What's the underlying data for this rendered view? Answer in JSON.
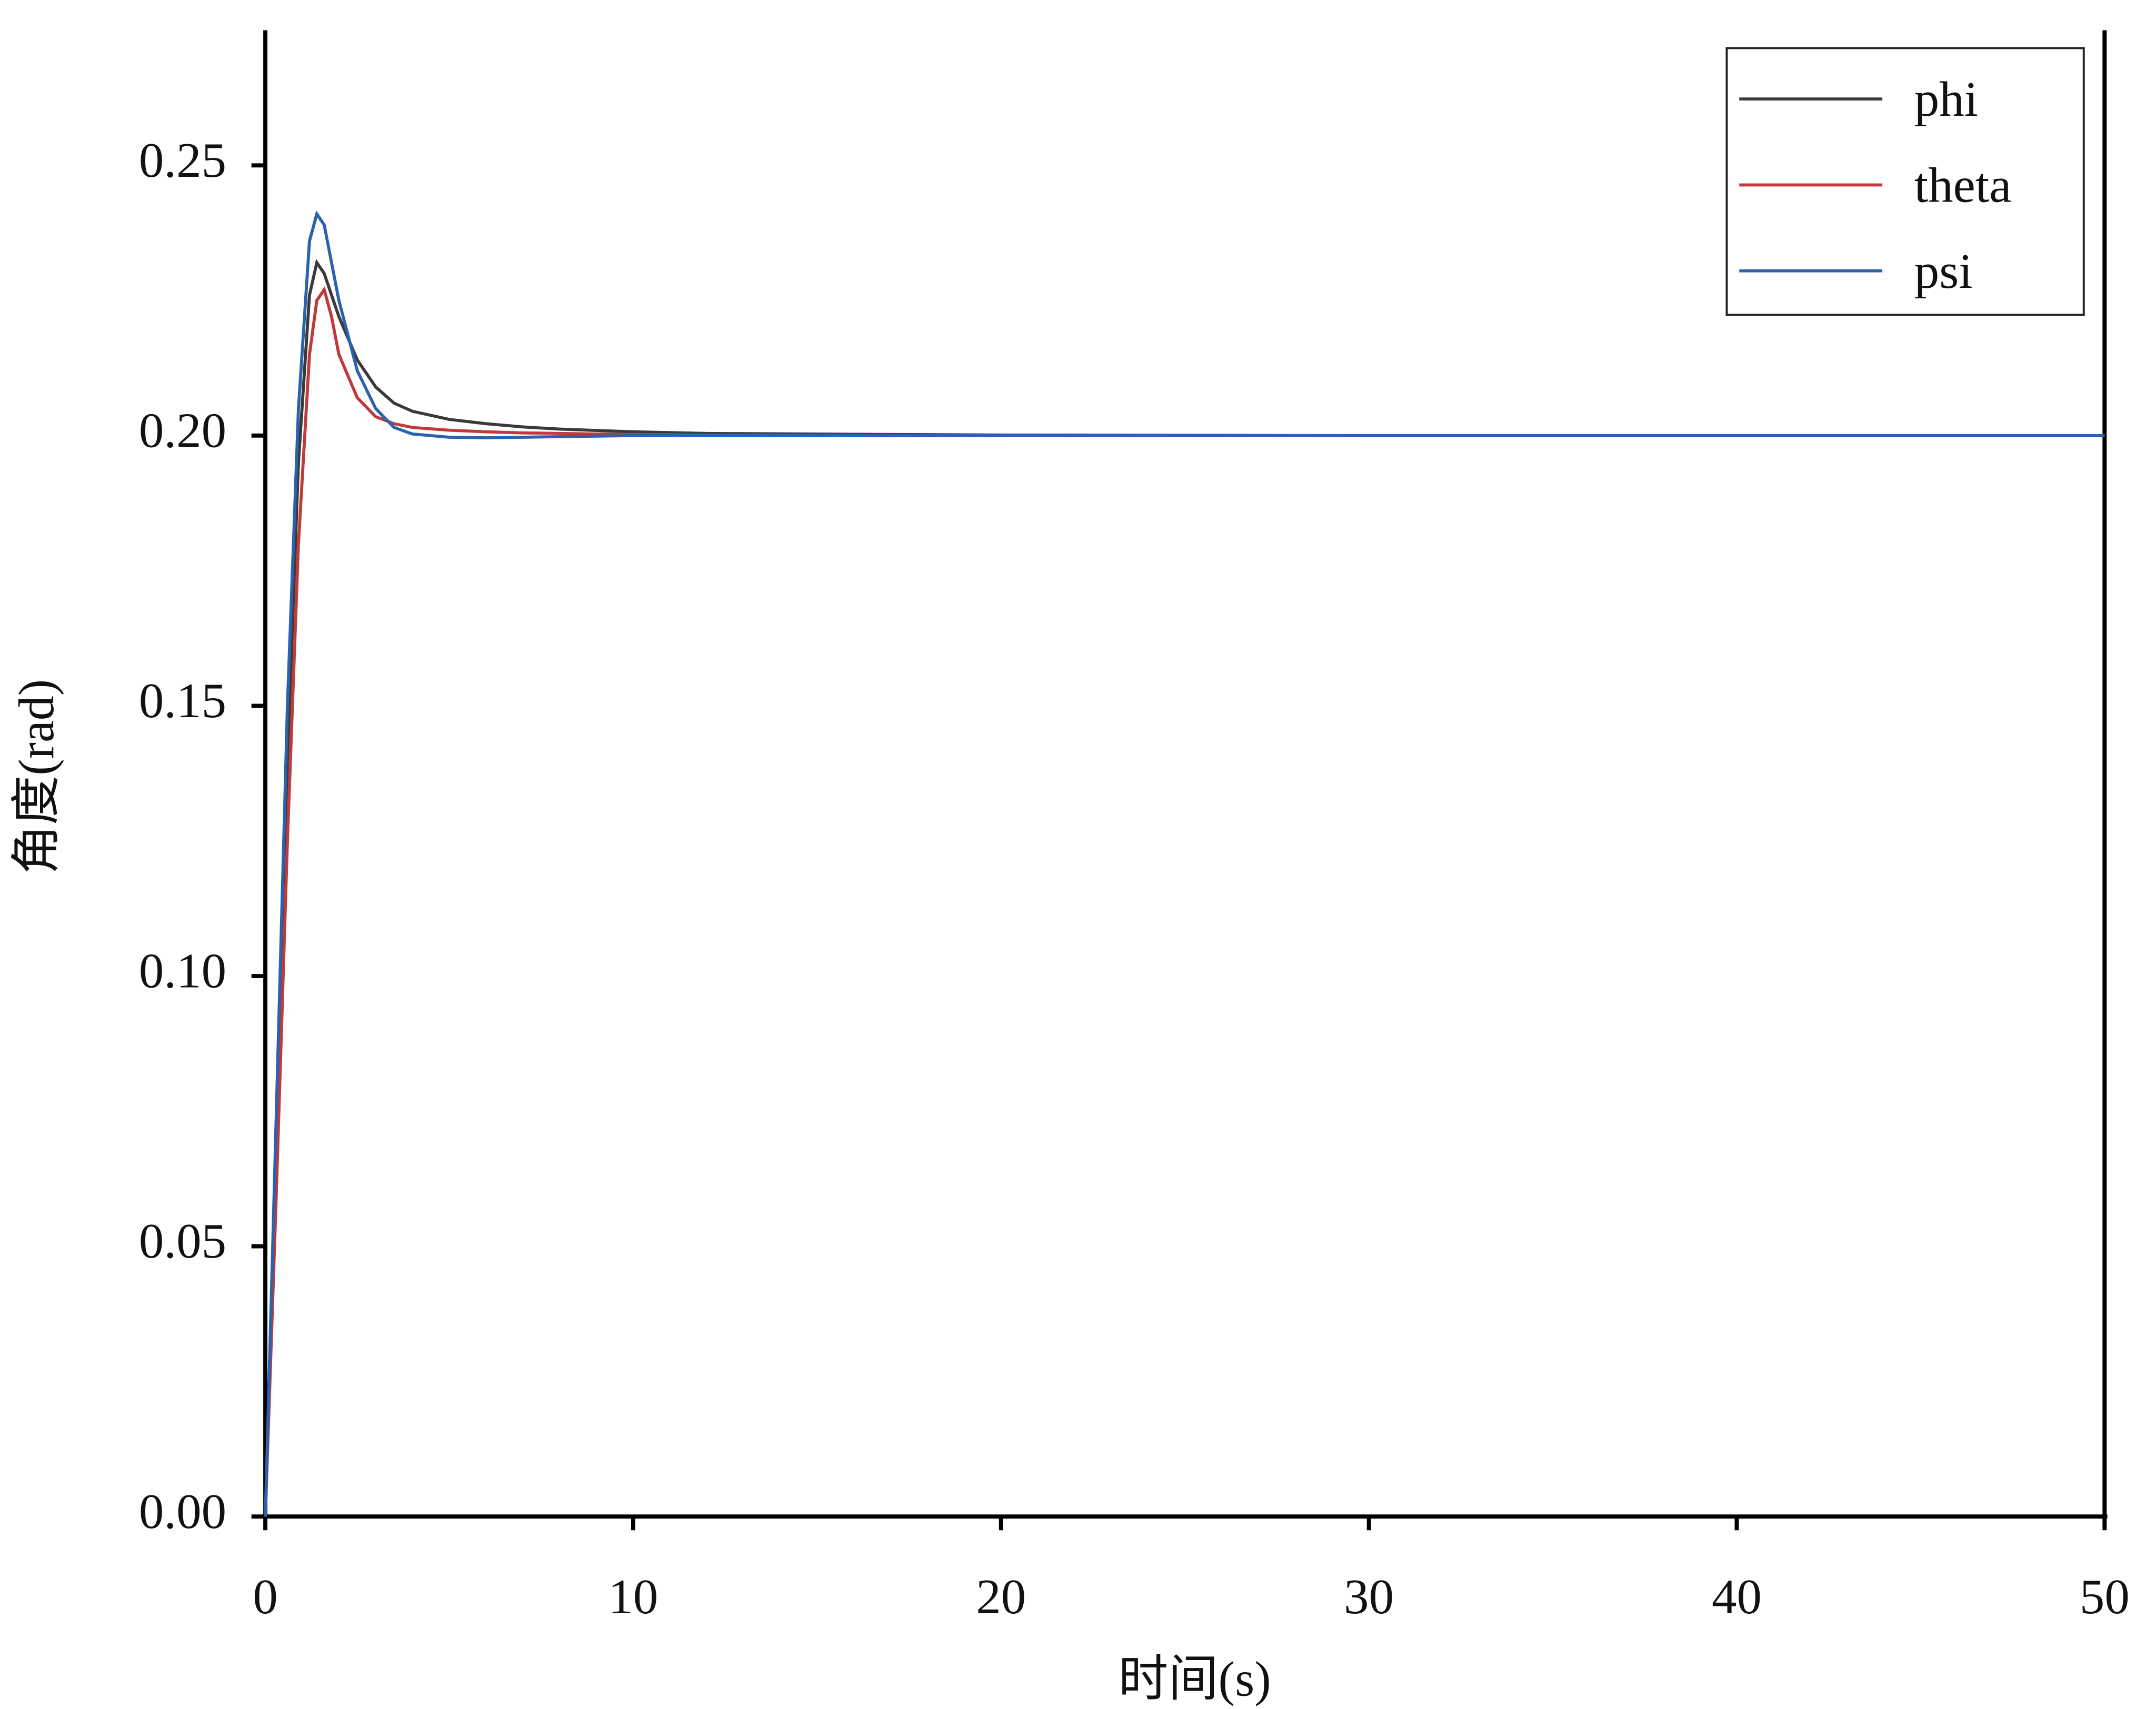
{
  "chart_data": {
    "type": "line",
    "x_label": "时间(s)",
    "y_label": "角度(rad)",
    "x": [
      0,
      0.3,
      0.6,
      0.9,
      1.2,
      1.4,
      1.6,
      1.8,
      2.0,
      2.5,
      3,
      3.5,
      4,
      5,
      6,
      7,
      8,
      10,
      12,
      20,
      30,
      50
    ],
    "series": [
      {
        "name": "phi",
        "color": "#3a3a3a",
        "values": [
          0,
          0.07,
          0.14,
          0.195,
          0.226,
          0.232,
          0.23,
          0.226,
          0.222,
          0.214,
          0.209,
          0.206,
          0.2045,
          0.203,
          0.2022,
          0.2016,
          0.2012,
          0.2007,
          0.2004,
          0.2001,
          0.2,
          0.2
        ]
      },
      {
        "name": "theta",
        "color": "#c0393b",
        "values": [
          0,
          0.06,
          0.125,
          0.18,
          0.215,
          0.225,
          0.227,
          0.222,
          0.215,
          0.207,
          0.2035,
          0.2022,
          0.2015,
          0.201,
          0.2007,
          0.2005,
          0.2004,
          0.2002,
          0.2001,
          0.2,
          0.2,
          0.2
        ]
      },
      {
        "name": "psi",
        "color": "#2a62b0",
        "values": [
          0,
          0.075,
          0.15,
          0.205,
          0.236,
          0.241,
          0.239,
          0.232,
          0.225,
          0.212,
          0.205,
          0.2015,
          0.2003,
          0.1997,
          0.1996,
          0.1997,
          0.1998,
          0.2,
          0.2,
          0.2,
          0.2,
          0.2
        ]
      }
    ],
    "xlim": [
      0,
      50
    ],
    "xticks": [
      0,
      10,
      20,
      30,
      40,
      50
    ],
    "ylim": [
      0,
      0.275
    ],
    "yticks": [
      {
        "value": 0,
        "label": "0.00"
      },
      0.05,
      {
        "value": 0.1,
        "label": "0.10"
      },
      0.15,
      {
        "value": 0.2,
        "label": "0.20"
      },
      0.25
    ],
    "legend": "upper right"
  }
}
